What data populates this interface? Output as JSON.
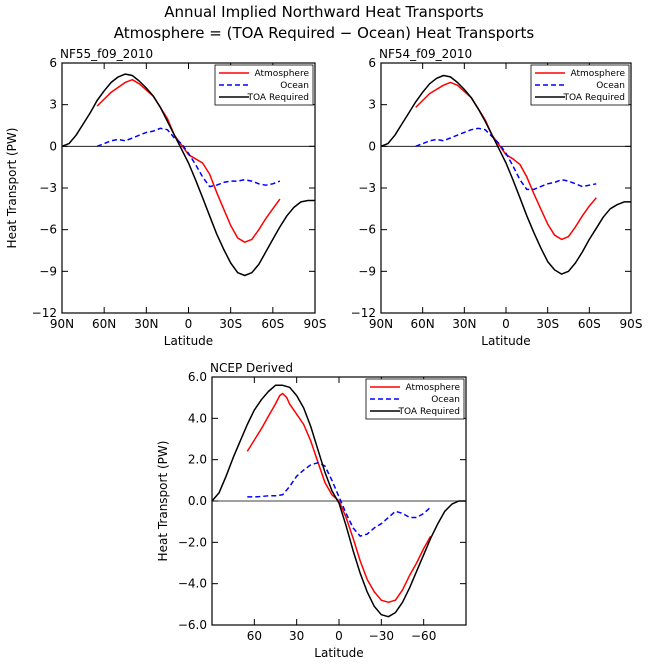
{
  "figure": {
    "title_line1": "Annual Implied Northward Heat Transports",
    "title_line2": "Atmosphere = (TOA Required − Ocean) Heat Transports"
  },
  "colors": {
    "atmosphere": "#ff0000",
    "ocean": "#0000ff",
    "toa": "#000000"
  },
  "chart_data": [
    {
      "type": "line",
      "title": "NF55_f09_2010",
      "xlabel": "Latitude",
      "ylabel": "Heat Transport (PW)",
      "xlim": [
        90,
        -90
      ],
      "ylim": [
        -12,
        6
      ],
      "xticks": [
        90,
        60,
        30,
        0,
        -30,
        -60,
        -90
      ],
      "xtick_labels": [
        "90N",
        "60N",
        "30N",
        "0",
        "30S",
        "60S",
        "90S"
      ],
      "yticks": [
        -12,
        -9,
        -6,
        -3,
        0,
        3,
        6
      ],
      "ytick_labels": [
        "−12",
        "−9",
        "−6",
        "−3",
        "0",
        "3",
        "6"
      ],
      "zero_line": true,
      "legend": [
        "Atmosphere",
        "Ocean",
        "TOA Required"
      ],
      "legend_position": "top-right",
      "series": [
        {
          "name": "Atmosphere",
          "color_key": "atmosphere",
          "dash": false,
          "x": [
            65,
            55,
            45,
            40,
            35,
            25,
            15,
            10,
            5,
            0,
            -5,
            -10,
            -15,
            -20,
            -25,
            -30,
            -35,
            -40,
            -45,
            -50,
            -55,
            -60,
            -65
          ],
          "y": [
            2.9,
            3.9,
            4.6,
            4.8,
            4.5,
            3.6,
            2.0,
            0.8,
            0.1,
            -0.6,
            -0.9,
            -1.2,
            -2.0,
            -3.3,
            -4.5,
            -5.7,
            -6.6,
            -6.9,
            -6.7,
            -6.0,
            -5.2,
            -4.5,
            -3.8
          ]
        },
        {
          "name": "Ocean",
          "color_key": "ocean",
          "dash": true,
          "x": [
            65,
            60,
            55,
            50,
            45,
            40,
            35,
            30,
            25,
            20,
            15,
            10,
            5,
            0,
            -5,
            -10,
            -15,
            -20,
            -25,
            -30,
            -35,
            -40,
            -45,
            -50,
            -55,
            -60,
            -65
          ],
          "y": [
            0.0,
            0.2,
            0.4,
            0.5,
            0.4,
            0.6,
            0.8,
            1.0,
            1.1,
            1.3,
            1.2,
            0.6,
            0.2,
            -0.5,
            -1.3,
            -2.2,
            -2.9,
            -2.8,
            -2.6,
            -2.5,
            -2.5,
            -2.4,
            -2.5,
            -2.7,
            -2.8,
            -2.7,
            -2.5
          ]
        },
        {
          "name": "TOA Required",
          "color_key": "toa",
          "dash": false,
          "x": [
            90,
            85,
            80,
            75,
            70,
            65,
            60,
            55,
            50,
            45,
            40,
            35,
            30,
            25,
            20,
            15,
            10,
            5,
            0,
            -5,
            -10,
            -15,
            -20,
            -25,
            -30,
            -35,
            -40,
            -45,
            -50,
            -55,
            -60,
            -65,
            -70,
            -75,
            -80,
            -85,
            -90
          ],
          "y": [
            0.0,
            0.2,
            0.8,
            1.6,
            2.4,
            3.3,
            4.0,
            4.6,
            5.0,
            5.2,
            5.1,
            4.7,
            4.2,
            3.6,
            2.8,
            1.8,
            0.8,
            -0.2,
            -1.2,
            -2.4,
            -3.7,
            -5.0,
            -6.3,
            -7.4,
            -8.4,
            -9.1,
            -9.3,
            -9.1,
            -8.5,
            -7.6,
            -6.7,
            -5.8,
            -5.0,
            -4.4,
            -4.0,
            -3.9,
            -3.9
          ]
        }
      ]
    },
    {
      "type": "line",
      "title": "NF54_f09_2010",
      "xlabel": "Latitude",
      "ylabel": "",
      "xlim": [
        90,
        -90
      ],
      "ylim": [
        -12,
        6
      ],
      "xticks": [
        90,
        60,
        30,
        0,
        -30,
        -60,
        -90
      ],
      "xtick_labels": [
        "90N",
        "60N",
        "30N",
        "0",
        "30S",
        "60S",
        "90S"
      ],
      "yticks": [
        -12,
        -9,
        -6,
        -3,
        0,
        3,
        6
      ],
      "ytick_labels": [
        "−12",
        "−9",
        "−6",
        "−3",
        "0",
        "3",
        "6"
      ],
      "zero_line": true,
      "legend": [
        "Atmosphere",
        "Ocean",
        "TOA Required"
      ],
      "legend_position": "top-right",
      "series": [
        {
          "name": "Atmosphere",
          "color_key": "atmosphere",
          "dash": false,
          "x": [
            65,
            55,
            45,
            40,
            35,
            25,
            15,
            10,
            5,
            0,
            -5,
            -10,
            -15,
            -20,
            -25,
            -30,
            -35,
            -40,
            -45,
            -50,
            -55,
            -60,
            -65
          ],
          "y": [
            2.8,
            3.8,
            4.4,
            4.6,
            4.4,
            3.5,
            1.9,
            0.8,
            0.1,
            -0.6,
            -0.9,
            -1.3,
            -2.2,
            -3.4,
            -4.5,
            -5.6,
            -6.4,
            -6.7,
            -6.5,
            -5.8,
            -5.0,
            -4.3,
            -3.7
          ]
        },
        {
          "name": "Ocean",
          "color_key": "ocean",
          "dash": true,
          "x": [
            65,
            60,
            55,
            50,
            45,
            40,
            35,
            30,
            25,
            20,
            15,
            10,
            5,
            0,
            -5,
            -10,
            -15,
            -20,
            -25,
            -30,
            -35,
            -40,
            -45,
            -50,
            -55,
            -60,
            -65
          ],
          "y": [
            0.0,
            0.2,
            0.4,
            0.5,
            0.4,
            0.6,
            0.8,
            1.0,
            1.2,
            1.3,
            1.2,
            0.7,
            0.2,
            -0.5,
            -1.4,
            -2.4,
            -3.1,
            -3.1,
            -2.9,
            -2.7,
            -2.6,
            -2.4,
            -2.5,
            -2.7,
            -2.9,
            -2.8,
            -2.7
          ]
        },
        {
          "name": "TOA Required",
          "color_key": "toa",
          "dash": false,
          "x": [
            90,
            85,
            80,
            75,
            70,
            65,
            60,
            55,
            50,
            45,
            40,
            35,
            30,
            25,
            20,
            15,
            10,
            5,
            0,
            -5,
            -10,
            -15,
            -20,
            -25,
            -30,
            -35,
            -40,
            -45,
            -50,
            -55,
            -60,
            -65,
            -70,
            -75,
            -80,
            -85,
            -90
          ],
          "y": [
            0.0,
            0.2,
            0.8,
            1.6,
            2.4,
            3.2,
            3.9,
            4.5,
            4.9,
            5.1,
            5.0,
            4.6,
            4.1,
            3.5,
            2.7,
            1.8,
            0.8,
            -0.2,
            -1.2,
            -2.4,
            -3.7,
            -5.0,
            -6.2,
            -7.3,
            -8.3,
            -8.9,
            -9.2,
            -9.0,
            -8.4,
            -7.6,
            -6.7,
            -5.9,
            -5.1,
            -4.5,
            -4.2,
            -4.0,
            -4.0
          ]
        }
      ]
    },
    {
      "type": "line",
      "title": "NCEP Derived",
      "xlabel": "Latitude",
      "ylabel": "Heat Transport (PW)",
      "xlim": [
        90,
        -90
      ],
      "ylim": [
        -6,
        6
      ],
      "xticks": [
        60,
        30,
        0,
        -30,
        -60
      ],
      "xtick_labels": [
        "60",
        "30",
        "0",
        "−30",
        "−60"
      ],
      "yticks": [
        -6,
        -4,
        -2,
        0,
        2,
        4,
        6
      ],
      "ytick_labels": [
        "−6.0",
        "−4.0",
        "−2.0",
        "0.0",
        "2.0",
        "4.0",
        "6.0"
      ],
      "zero_line": true,
      "legend": [
        "Atmosphere",
        "Ocean",
        "TOA Required"
      ],
      "legend_position": "top-right",
      "series": [
        {
          "name": "Atmosphere",
          "color_key": "atmosphere",
          "dash": false,
          "x": [
            65,
            55,
            50,
            45,
            42,
            40,
            37,
            35,
            30,
            25,
            20,
            15,
            10,
            5,
            0,
            -5,
            -10,
            -15,
            -20,
            -25,
            -30,
            -35,
            -40,
            -45,
            -50,
            -55,
            -60,
            -65
          ],
          "y": [
            2.4,
            3.5,
            4.1,
            4.7,
            5.1,
            5.2,
            5.0,
            4.7,
            4.2,
            3.7,
            2.9,
            1.9,
            0.9,
            0.3,
            0.0,
            -0.8,
            -1.8,
            -2.9,
            -3.8,
            -4.4,
            -4.8,
            -4.9,
            -4.8,
            -4.3,
            -3.6,
            -3.0,
            -2.3,
            -1.7
          ]
        },
        {
          "name": "Ocean",
          "color_key": "ocean",
          "dash": true,
          "x": [
            65,
            60,
            55,
            50,
            45,
            40,
            35,
            30,
            25,
            20,
            15,
            10,
            5,
            0,
            -5,
            -10,
            -15,
            -20,
            -25,
            -30,
            -35,
            -40,
            -45,
            -50,
            -55,
            -60,
            -65
          ],
          "y": [
            0.2,
            0.2,
            0.22,
            0.25,
            0.25,
            0.3,
            0.7,
            1.2,
            1.5,
            1.75,
            1.85,
            1.7,
            1.0,
            0.2,
            -0.6,
            -1.3,
            -1.7,
            -1.6,
            -1.3,
            -1.1,
            -0.8,
            -0.5,
            -0.6,
            -0.8,
            -0.8,
            -0.6,
            -0.3
          ]
        },
        {
          "name": "TOA Required",
          "color_key": "toa",
          "dash": false,
          "x": [
            90,
            85,
            80,
            75,
            70,
            65,
            60,
            55,
            50,
            45,
            40,
            35,
            30,
            25,
            20,
            15,
            10,
            5,
            0,
            -5,
            -10,
            -15,
            -20,
            -25,
            -30,
            -35,
            -40,
            -45,
            -50,
            -55,
            -60,
            -65,
            -70,
            -75,
            -80,
            -85,
            -90
          ],
          "y": [
            0.0,
            0.4,
            1.2,
            2.1,
            2.9,
            3.7,
            4.4,
            4.9,
            5.3,
            5.6,
            5.6,
            5.5,
            5.1,
            4.5,
            3.6,
            2.5,
            1.4,
            0.5,
            -0.1,
            -1.2,
            -2.4,
            -3.5,
            -4.4,
            -5.1,
            -5.5,
            -5.6,
            -5.4,
            -4.9,
            -4.2,
            -3.4,
            -2.6,
            -1.8,
            -1.1,
            -0.5,
            -0.15,
            0.0,
            0.0
          ]
        }
      ]
    }
  ]
}
